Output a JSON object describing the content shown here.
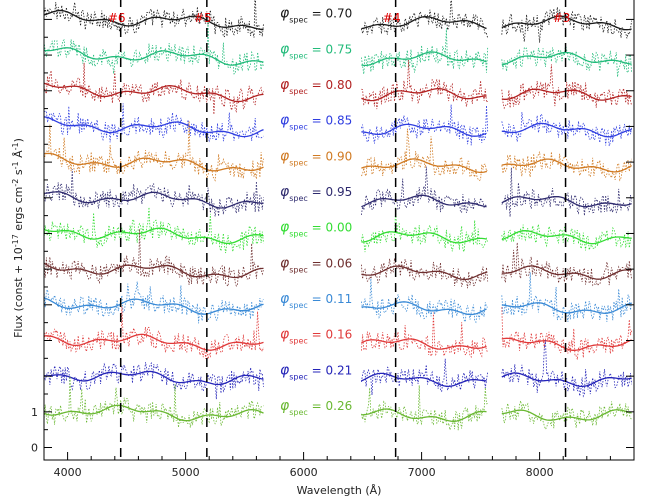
{
  "chart_data": {
    "type": "line",
    "title": "",
    "xlabel": "Wavelength (Å)",
    "ylabel": "Flux (const + 10^-17 ergs cm^-2 s^-1 Å^-1)",
    "xlim": [
      3800,
      8800
    ],
    "xticks": [
      4000,
      5000,
      6000,
      7000,
      8000
    ],
    "y_tick_labels": [
      {
        "text": "0",
        "value": 0
      },
      {
        "text": "1",
        "value": 1
      }
    ],
    "ylim": [
      -0.35,
      12.6
    ],
    "grid": false,
    "line_markers": [
      {
        "label": "#6",
        "x": 4450
      },
      {
        "label": "#5",
        "x": 5180
      },
      {
        "label": "#4",
        "x": 6780
      },
      {
        "label": "#3",
        "x": 8220
      }
    ],
    "wavelength_segments": [
      [
        3800,
        5660
      ],
      [
        6490,
        7560
      ],
      [
        7680,
        8780
      ]
    ],
    "phase_symbol": "φ",
    "phase_subscript": "spec",
    "series": [
      {
        "name": "0.70",
        "offset": 11.9,
        "color": "#1a1a1a"
      },
      {
        "name": "0.75",
        "offset": 10.9,
        "color": "#22bb7a"
      },
      {
        "name": "0.80",
        "offset": 9.9,
        "color": "#b22222"
      },
      {
        "name": "0.85",
        "offset": 8.9,
        "color": "#2f3ee0"
      },
      {
        "name": "0.90",
        "offset": 7.9,
        "color": "#d07a22"
      },
      {
        "name": "0.95",
        "offset": 6.9,
        "color": "#2e2a6e"
      },
      {
        "name": "0.00",
        "offset": 5.9,
        "color": "#33dd33"
      },
      {
        "name": "0.06",
        "offset": 4.9,
        "color": "#6e2e2e"
      },
      {
        "name": "0.11",
        "offset": 3.9,
        "color": "#3a8ad6"
      },
      {
        "name": "0.16",
        "offset": 2.9,
        "color": "#e03a3a"
      },
      {
        "name": "0.21",
        "offset": 1.9,
        "color": "#2424b8"
      },
      {
        "name": "0.26",
        "offset": 0.9,
        "color": "#6ab832"
      }
    ]
  }
}
